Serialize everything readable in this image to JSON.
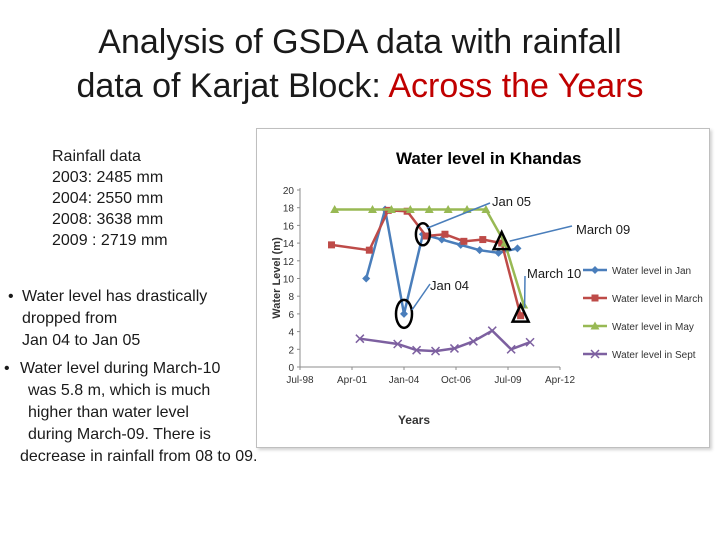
{
  "slide": {
    "title_line1": "Analysis of GSDA data with rainfall",
    "title_line2_prefix": "data of Karjat Block: ",
    "title_line2_accent": "Across the Years",
    "accent_color": "#c00000"
  },
  "rainfall": {
    "heading": "Rainfall data",
    "rows": [
      "2003:  2485 mm",
      "2004: 2550 mm",
      "2008: 3638 mm",
      "2009 : 2719 mm"
    ]
  },
  "bullets": [
    {
      "marker": "•",
      "lines": [
        "Water level has drastically",
        "dropped from",
        "Jan 04 to Jan 05"
      ]
    },
    {
      "marker": "•",
      "lines": [
        "Water level during  March-10",
        "was 5.8 m, which is much",
        "higher than  water level",
        "during March-09. There is",
        "decrease in rainfall from 08 to 09."
      ]
    }
  ],
  "chart_data": {
    "type": "line",
    "title": "Water level in Khandas",
    "xlabel": "Years",
    "ylabel": "Water Level (m)",
    "x_ticks": [
      "Jul-98",
      "Apr-01",
      "Jan-04",
      "Oct-06",
      "Jul-09",
      "Apr-12"
    ],
    "ylim": [
      0,
      20
    ],
    "y_ticks": [
      0,
      2,
      4,
      6,
      8,
      10,
      12,
      14,
      16,
      18,
      20
    ],
    "grid": false,
    "legend_position": "right",
    "series": [
      {
        "name": "Water level in Jan",
        "color": "#4a7ebb",
        "marker": "diamond",
        "x": [
          "2002-01",
          "2003-01",
          "2004-01",
          "2005-01",
          "2006-01",
          "2007-01",
          "2008-01",
          "2009-01",
          "2010-01"
        ],
        "y": [
          10,
          17.8,
          6,
          15,
          14.4,
          13.8,
          13.2,
          12.9,
          13.4
        ]
      },
      {
        "name": "Water level in March",
        "color": "#be4b48",
        "marker": "square",
        "x": [
          "2000-03",
          "2002-03",
          "2003-03",
          "2004-03",
          "2005-03",
          "2006-03",
          "2007-03",
          "2008-03",
          "2009-03",
          "2010-03"
        ],
        "y": [
          13.8,
          13.2,
          17.7,
          17.6,
          14.8,
          15,
          14.2,
          14.4,
          14,
          5.8
        ]
      },
      {
        "name": "Water level in May",
        "color": "#98b954",
        "marker": "triangle",
        "x": [
          "2000-05",
          "2002-05",
          "2003-05",
          "2004-05",
          "2005-05",
          "2006-05",
          "2007-05",
          "2008-05",
          "2009-05",
          "2010-05"
        ],
        "y": [
          17.8,
          17.8,
          17.8,
          17.8,
          17.8,
          17.8,
          17.8,
          17.8,
          14,
          7
        ]
      },
      {
        "name": "Water level in Sept",
        "color": "#7d60a0",
        "marker": "x",
        "x": [
          "2001-09",
          "2003-09",
          "2004-09",
          "2005-09",
          "2006-09",
          "2007-09",
          "2008-09",
          "2009-09",
          "2010-09"
        ],
        "y": [
          3.2,
          2.6,
          1.9,
          1.8,
          2.1,
          2.9,
          4.1,
          2,
          2.8
        ]
      }
    ],
    "annotations": [
      {
        "label": "Jan 05"
      },
      {
        "label": "March 09"
      },
      {
        "label": "Jan 04"
      },
      {
        "label": "March 10"
      }
    ]
  }
}
